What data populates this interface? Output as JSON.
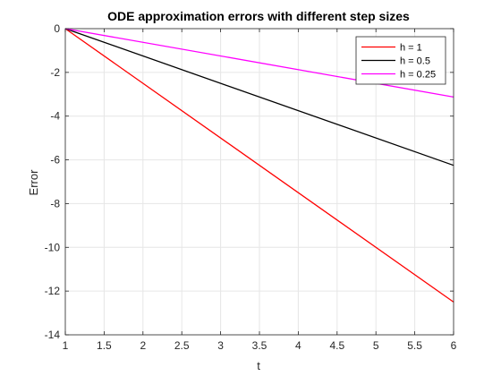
{
  "chart_data": {
    "type": "line",
    "title": "ODE approximation errors with different step sizes",
    "xlabel": "t",
    "ylabel": "Error",
    "xlim": [
      1,
      6
    ],
    "ylim": [
      -14,
      0
    ],
    "xticks": [
      1,
      1.5,
      2,
      2.5,
      3,
      3.5,
      4,
      4.5,
      5,
      5.5,
      6
    ],
    "yticks": [
      0,
      -2,
      -4,
      -6,
      -8,
      -10,
      -12,
      -14
    ],
    "grid": true,
    "legend_position": "top-right",
    "series": [
      {
        "name": "h = 1",
        "color": "#ff0000",
        "x": [
          1,
          6
        ],
        "y": [
          0,
          -12.5
        ]
      },
      {
        "name": "h = 0.5",
        "color": "#000000",
        "x": [
          1,
          6
        ],
        "y": [
          0,
          -6.25
        ]
      },
      {
        "name": "h = 0.25",
        "color": "#ff00ff",
        "x": [
          1,
          6
        ],
        "y": [
          0,
          -3.125
        ]
      }
    ]
  }
}
